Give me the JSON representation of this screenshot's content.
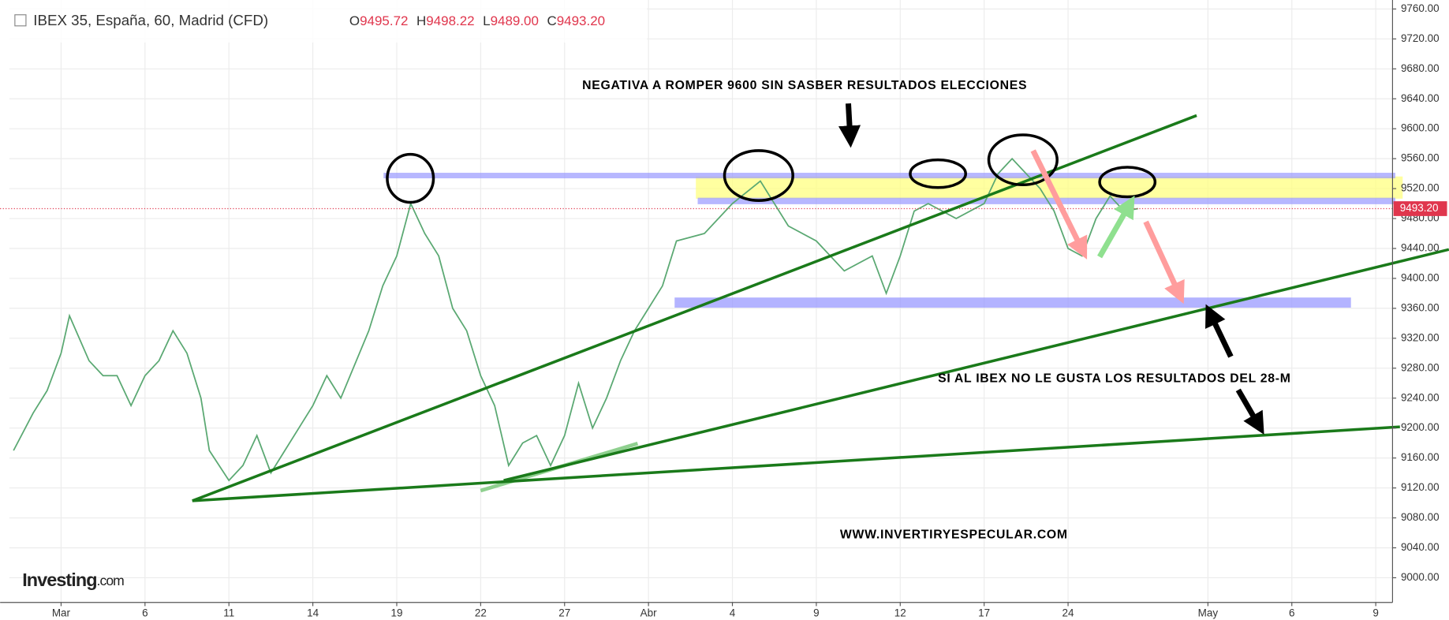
{
  "chart_data": {
    "type": "line",
    "header": {
      "title": "IBEX 35, España, 60, Madrid (CFD)",
      "open_label": "O",
      "open": "9495.72",
      "high_label": "H",
      "high": "9498.22",
      "low_label": "L",
      "low": "9489.00",
      "close_label": "C",
      "close": "9493.20"
    },
    "annotations": [
      "NEGATIVA A ROMPER 9600 SIN SASBER RESULTADOS ELECCIONES",
      "SI AL IBEX NO LE GUSTA LOS RESULTADOS DEL 28-M",
      "WWW.INVERTIRYESPECULAR.COM"
    ],
    "watermark": "Investing",
    "watermark_suffix": ".com",
    "last_price": {
      "value": 9493.2,
      "label": "9493.20"
    },
    "series": [
      {
        "name": "IBEX 35",
        "color": "#5aa872",
        "x": [
          -1.7,
          -1,
          -0.5,
          0,
          0.3,
          1,
          1.5,
          2,
          2.5,
          3,
          3.5,
          4,
          4.5,
          5,
          5.3,
          6,
          6.5,
          7,
          7.5,
          8,
          8.5,
          9,
          9.5,
          10,
          11,
          11.5,
          12,
          12.5,
          13,
          13.5,
          14,
          14.5,
          15,
          15.5,
          16,
          16.5,
          17,
          17.5,
          18,
          18.5,
          19,
          19.5,
          20,
          20.5,
          21,
          21.5,
          22,
          23,
          24,
          25,
          26,
          27,
          28,
          29,
          29.5,
          30,
          30.5,
          31,
          32,
          33,
          33.5,
          34,
          35,
          35.5,
          36,
          36.5,
          37,
          37.5,
          38,
          38.5
        ],
        "values": [
          9170,
          9220,
          9250,
          9300,
          9350,
          9290,
          9270,
          9270,
          9230,
          9270,
          9290,
          9330,
          9300,
          9240,
          9170,
          9130,
          9150,
          9190,
          9140,
          9170,
          9200,
          9230,
          9270,
          9240,
          9330,
          9390,
          9430,
          9500,
          9460,
          9430,
          9360,
          9330,
          9270,
          9230,
          9150,
          9180,
          9190,
          9150,
          9190,
          9260,
          9200,
          9240,
          9290,
          9330,
          9360,
          9390,
          9450,
          9460,
          9500,
          9530,
          9470,
          9450,
          9410,
          9430,
          9380,
          9430,
          9490,
          9500,
          9480,
          9500,
          9540,
          9560,
          9520,
          9490,
          9440,
          9430,
          9480,
          9510,
          9490,
          9493.2
        ]
      }
    ],
    "xlim": [
      -1.85,
      47.6
    ],
    "xticks": [
      {
        "value": 0,
        "label": "Mar"
      },
      {
        "value": 3,
        "label": "6"
      },
      {
        "value": 6,
        "label": "11"
      },
      {
        "value": 9,
        "label": "14"
      },
      {
        "value": 12,
        "label": "19"
      },
      {
        "value": 15,
        "label": "22"
      },
      {
        "value": 18,
        "label": "27"
      },
      {
        "value": 21,
        "label": "Abr"
      },
      {
        "value": 24,
        "label": "4"
      },
      {
        "value": 27,
        "label": "9"
      },
      {
        "value": 30,
        "label": "12"
      },
      {
        "value": 33,
        "label": "17"
      },
      {
        "value": 36,
        "label": "24"
      },
      {
        "value": 41,
        "label": "May"
      },
      {
        "value": 44,
        "label": "6"
      },
      {
        "value": 47,
        "label": "9"
      }
    ],
    "ylim": [
      8967,
      9772
    ],
    "yticks": [
      {
        "value": 9000,
        "label": "9000.00"
      },
      {
        "value": 9040,
        "label": "9040.00"
      },
      {
        "value": 9080,
        "label": "9080.00"
      },
      {
        "value": 9120,
        "label": "9120.00"
      },
      {
        "value": 9160,
        "label": "9160.00"
      },
      {
        "value": 9200,
        "label": "9200.00"
      },
      {
        "value": 9240,
        "label": "9240.00"
      },
      {
        "value": 9280,
        "label": "9280.00"
      },
      {
        "value": 9320,
        "label": "9320.00"
      },
      {
        "value": 9360,
        "label": "9360.00"
      },
      {
        "value": 9400,
        "label": "9400.00"
      },
      {
        "value": 9440,
        "label": "9440.00"
      },
      {
        "value": 9480,
        "label": "9480.00"
      },
      {
        "value": 9520,
        "label": "9520.00"
      },
      {
        "value": 9560,
        "label": "9560.00"
      },
      {
        "value": 9600,
        "label": "9600.00"
      },
      {
        "value": 9640,
        "label": "9640.00"
      },
      {
        "value": 9680,
        "label": "9680.00"
      },
      {
        "value": 9720,
        "label": "9720.00"
      },
      {
        "value": 9760,
        "label": "9760.00"
      }
    ],
    "grid": true
  }
}
